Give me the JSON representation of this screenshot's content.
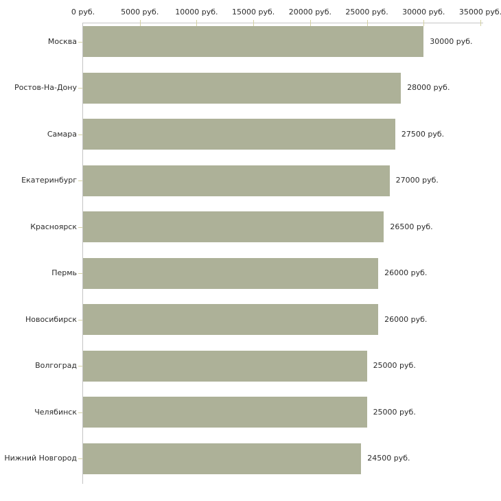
{
  "chart_data": {
    "type": "bar",
    "orientation": "horizontal",
    "title": "",
    "xlabel": "",
    "ylabel": "",
    "grid": false,
    "legend": null,
    "categories": [
      "Москва",
      "Ростов-На-Дону",
      "Самара",
      "Екатеринбург",
      "Красноярск",
      "Пермь",
      "Новосибирск",
      "Волгоград",
      "Челябинск",
      "Нижний Новгород"
    ],
    "values": [
      30000,
      28000,
      27500,
      27000,
      26500,
      26000,
      26000,
      25000,
      25000,
      24500
    ],
    "value_labels": [
      "30000 руб.",
      "28000 руб.",
      "27500 руб.",
      "27000 руб.",
      "26500 руб.",
      "26000 руб.",
      "26000 руб.",
      "25000 руб.",
      "25000 руб.",
      "24500 руб."
    ],
    "x_tick_values": [
      0,
      5000,
      10000,
      15000,
      20000,
      25000,
      30000,
      35000
    ],
    "x_tick_labels": [
      "0 руб.",
      "5000 руб.",
      "10000 руб.",
      "15000 руб.",
      "20000 руб.",
      "25000 руб.",
      "30000 руб.",
      "35000 руб."
    ],
    "xlim": [
      0,
      35000
    ],
    "colors": {
      "bar": "#adb198",
      "axis_line": "#c4c4c4",
      "tick": "#d4d1a2",
      "text": "#2b2b2b",
      "background": "#ffffff"
    }
  }
}
